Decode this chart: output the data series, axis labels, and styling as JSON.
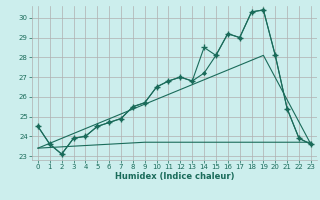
{
  "title": "",
  "xlabel": "Humidex (Indice chaleur)",
  "bg_color": "#cceeed",
  "grid_color": "#b0b0b0",
  "line_color": "#1a6b5a",
  "xlim": [
    -0.5,
    23.5
  ],
  "ylim": [
    22.8,
    30.6
  ],
  "yticks": [
    23,
    24,
    25,
    26,
    27,
    28,
    29,
    30
  ],
  "xticks": [
    0,
    1,
    2,
    3,
    4,
    5,
    6,
    7,
    8,
    9,
    10,
    11,
    12,
    13,
    14,
    15,
    16,
    17,
    18,
    19,
    20,
    21,
    22,
    23
  ],
  "series1_x": [
    0,
    1,
    2,
    3,
    4,
    5,
    6,
    7,
    8,
    9,
    10,
    11,
    12,
    13,
    14,
    15,
    16,
    17,
    18,
    19,
    20,
    21,
    22,
    23
  ],
  "series1_y": [
    24.5,
    23.6,
    23.1,
    23.9,
    24.0,
    24.5,
    24.7,
    24.9,
    25.5,
    25.7,
    26.5,
    26.8,
    27.0,
    26.8,
    28.5,
    28.1,
    29.2,
    29.0,
    30.3,
    30.4,
    28.1,
    25.4,
    23.9,
    23.6
  ],
  "series2_x": [
    0,
    1,
    2,
    3,
    4,
    5,
    6,
    7,
    8,
    9,
    10,
    11,
    12,
    13,
    14,
    15,
    16,
    17,
    18,
    19,
    20,
    21,
    22,
    23
  ],
  "series2_y": [
    24.5,
    23.6,
    23.1,
    23.9,
    24.0,
    24.5,
    24.7,
    24.9,
    25.5,
    25.7,
    26.5,
    26.8,
    27.0,
    26.8,
    27.2,
    28.1,
    29.2,
    29.0,
    30.3,
    30.4,
    28.1,
    25.4,
    23.9,
    23.6
  ],
  "series3_x": [
    0,
    9,
    20,
    23
  ],
  "series3_y": [
    23.4,
    23.7,
    23.7,
    23.7
  ],
  "series4_x": [
    0,
    19,
    23
  ],
  "series4_y": [
    23.4,
    28.1,
    23.6
  ]
}
